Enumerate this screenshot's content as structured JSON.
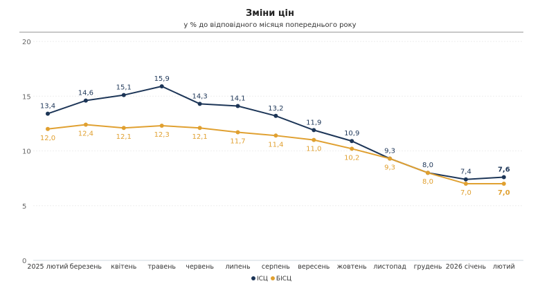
{
  "chart_data": {
    "type": "line",
    "title": "Зміни цін",
    "subtitle": "у % до відповідного місяця попереднього року",
    "categories": [
      "2025 лютий",
      "березень",
      "квітень",
      "травень",
      "червень",
      "липень",
      "серпень",
      "вересень",
      "жовтень",
      "листопад",
      "грудень",
      "2026 січень",
      "лютий"
    ],
    "ylim": [
      0,
      20
    ],
    "yticks": [
      0,
      5,
      10,
      15,
      20
    ],
    "grid": true,
    "legend_placement": "bottom",
    "series": [
      {
        "name": "ІСЦ",
        "color": "#1c3557",
        "values": [
          13.4,
          14.6,
          15.1,
          15.9,
          14.3,
          14.1,
          13.2,
          11.9,
          10.9,
          9.3,
          8.0,
          7.4,
          7.6
        ]
      },
      {
        "name": "БІСЦ",
        "color": "#e0a030",
        "values": [
          12.0,
          12.4,
          12.1,
          12.3,
          12.1,
          11.7,
          11.4,
          11.0,
          10.2,
          9.3,
          8.0,
          7.0,
          7.0
        ]
      }
    ]
  }
}
